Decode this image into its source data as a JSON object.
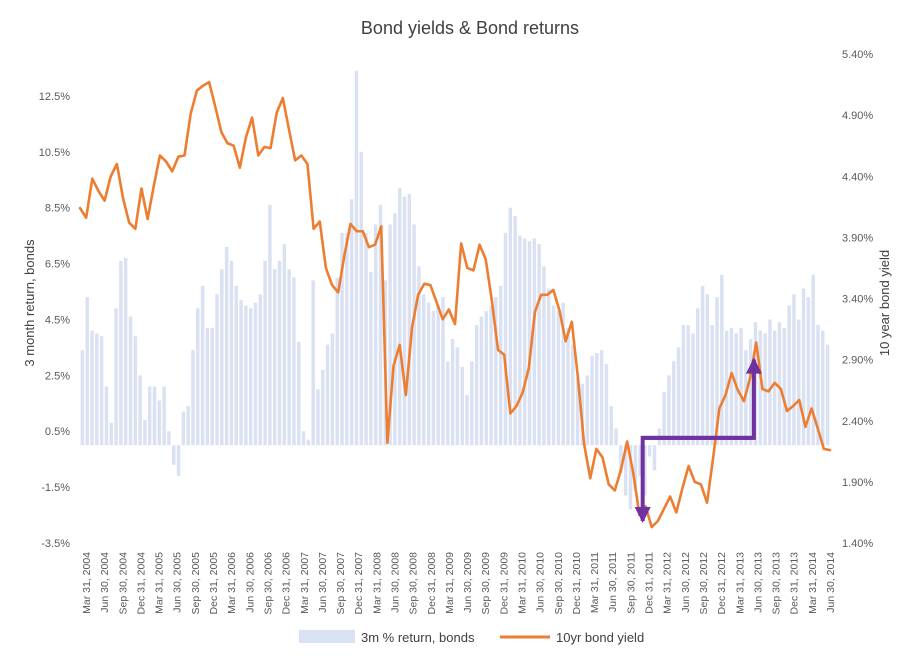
{
  "chart_data": {
    "type": "bar+line",
    "title": "Bond yields & Bond returns",
    "ylabel_left": "3 month return, bonds",
    "ylabel_right": "10 year bond yield",
    "yleft_range": [
      -3.5,
      14.0
    ],
    "yleft_ticks": [
      "12.5%",
      "10.5%",
      "8.5%",
      "6.5%",
      "4.5%",
      "2.5%",
      "0.5%",
      "-1.5%",
      "-3.5%"
    ],
    "yleft_tick_values": [
      12.5,
      10.5,
      8.5,
      6.5,
      4.5,
      2.5,
      0.5,
      -1.5,
      -3.5
    ],
    "yright_range": [
      1.4,
      5.4
    ],
    "yright_ticks": [
      "5.40%",
      "4.90%",
      "4.40%",
      "3.90%",
      "3.40%",
      "2.90%",
      "2.40%",
      "1.90%",
      "1.40%"
    ],
    "yright_tick_values": [
      5.4,
      4.9,
      4.4,
      3.9,
      3.4,
      2.9,
      2.4,
      1.9,
      1.4
    ],
    "x_labels": [
      "Mar 31, 2004",
      "Jun 30, 2004",
      "Sep 30, 2004",
      "Dec 31, 2004",
      "Mar 31, 2005",
      "Jun 30, 2005",
      "Sep 30, 2005",
      "Dec 31, 2005",
      "Mar 31, 2006",
      "Jun 30, 2006",
      "Sep 30, 2006",
      "Dec 31, 2006",
      "Mar 31, 2007",
      "Jun 30, 2007",
      "Sep 30, 2007",
      "Dec 31, 2007",
      "Mar 31, 2008",
      "Jun 30, 2008",
      "Sep 30, 2008",
      "Dec 31, 2008",
      "Mar 31, 2009",
      "Jun 30, 2009",
      "Sep 30, 2009",
      "Dec 31, 2009",
      "Mar 31, 2010",
      "Jun 30, 2010",
      "Sep 30, 2010",
      "Dec 31, 2010",
      "Mar 31, 2011",
      "Jun 30, 2011",
      "Sep 30, 2011",
      "Dec 31, 2011",
      "Mar 31, 2012",
      "Jun 30, 2012",
      "Sep 30, 2012",
      "Dec 31, 2012",
      "Mar 31, 2013",
      "Jun 30, 2013",
      "Sep 30, 2013",
      "Dec 31, 2013",
      "Mar 31, 2014",
      "Jun 30, 2014"
    ],
    "series": [
      {
        "name": "3m % return, bonds",
        "type": "bar",
        "axis": "left",
        "color": "#d9e1f2",
        "values": [
          3.4,
          5.3,
          4.1,
          4.0,
          3.9,
          2.1,
          0.8,
          4.9,
          6.6,
          6.7,
          4.6,
          3.9,
          2.5,
          0.9,
          2.1,
          2.1,
          1.6,
          2.1,
          0.5,
          -0.7,
          -1.1,
          1.2,
          1.4,
          3.4,
          4.9,
          5.7,
          4.2,
          4.2,
          5.4,
          6.3,
          7.1,
          6.6,
          5.7,
          5.2,
          5.0,
          4.9,
          5.1,
          5.4,
          6.6,
          8.6,
          6.3,
          6.6,
          7.2,
          6.3,
          6.0,
          3.7,
          0.5,
          0.2,
          5.9,
          2.0,
          2.7,
          3.6,
          4.0,
          6.0,
          7.6,
          7.6,
          8.8,
          13.4,
          10.5,
          7.6,
          6.2,
          7.9,
          8.6,
          5.9,
          7.9,
          8.3,
          9.2,
          8.9,
          9.0,
          7.9,
          6.4,
          5.4,
          5.1,
          4.8,
          5.0,
          5.3,
          3.0,
          3.8,
          3.5,
          2.8,
          1.8,
          3.0,
          4.3,
          4.6,
          4.8,
          5.0,
          5.3,
          5.7,
          7.6,
          8.5,
          8.2,
          7.5,
          7.4,
          7.3,
          7.4,
          7.2,
          6.4,
          5.6,
          5.0,
          4.8,
          5.1,
          4.2,
          3.6,
          2.4,
          2.2,
          2.5,
          3.2,
          3.3,
          3.4,
          2.9,
          1.4,
          0.6,
          -1.0,
          -1.8,
          -2.3,
          -1.6,
          -1.1,
          -1.8,
          -0.4,
          -0.9,
          0.6,
          1.9,
          2.5,
          3.0,
          3.5,
          4.3,
          4.3,
          4.0,
          4.9,
          5.7,
          5.4,
          4.3,
          5.3,
          6.1,
          4.1,
          4.2,
          4.0,
          4.2,
          3.4,
          3.8,
          4.4,
          4.1,
          4.0,
          4.5,
          4.1,
          4.4,
          4.2,
          5.0,
          5.4,
          4.5,
          5.6,
          5.3,
          6.1,
          4.3,
          4.1,
          3.6
        ]
      },
      {
        "name": "10yr bond yield",
        "type": "line",
        "axis": "right",
        "color": "#ed7d31",
        "values": [
          4.14,
          4.06,
          4.38,
          4.28,
          4.2,
          4.4,
          4.5,
          4.22,
          4.02,
          3.97,
          4.3,
          4.05,
          4.32,
          4.57,
          4.52,
          4.44,
          4.56,
          4.57,
          4.91,
          5.1,
          5.14,
          5.17,
          4.97,
          4.76,
          4.67,
          4.65,
          4.47,
          4.72,
          4.88,
          4.57,
          4.64,
          4.63,
          4.92,
          5.04,
          4.78,
          4.53,
          4.57,
          4.5,
          3.97,
          4.03,
          3.65,
          3.51,
          3.45,
          3.75,
          4.01,
          3.95,
          3.95,
          3.82,
          3.84,
          3.99,
          2.22,
          2.85,
          3.02,
          2.61,
          3.16,
          3.43,
          3.52,
          3.51,
          3.37,
          3.23,
          3.31,
          3.19,
          3.85,
          3.65,
          3.63,
          3.84,
          3.72,
          3.38,
          2.98,
          2.94,
          2.46,
          2.52,
          2.63,
          2.83,
          3.29,
          3.43,
          3.43,
          3.47,
          3.3,
          3.05,
          3.21,
          2.75,
          2.21,
          1.93,
          2.17,
          2.1,
          1.88,
          1.83,
          2.0,
          2.23,
          1.97,
          1.63,
          1.7,
          1.53,
          1.58,
          1.68,
          1.78,
          1.65,
          1.85,
          2.03,
          1.9,
          1.88,
          1.73,
          2.1,
          2.5,
          2.61,
          2.79,
          2.65,
          2.56,
          2.75,
          3.04,
          2.66,
          2.64,
          2.71,
          2.66,
          2.48,
          2.52,
          2.57,
          2.35,
          2.5,
          2.34,
          2.17,
          2.16
        ]
      }
    ],
    "legend_position": "bottom",
    "grid": false,
    "annotations": [
      {
        "type": "arrow",
        "color": "#7030a0",
        "description": "path",
        "points_data": [
          [
            2013.46,
            2.26
          ],
          [
            2011.94,
            2.26
          ],
          [
            2011.94,
            1.58
          ]
        ]
      },
      {
        "type": "arrow",
        "color": "#7030a0",
        "description": "path",
        "points_data": [
          [
            2011.94,
            2.26
          ],
          [
            2013.46,
            2.26
          ],
          [
            2013.46,
            2.9
          ]
        ]
      }
    ]
  }
}
